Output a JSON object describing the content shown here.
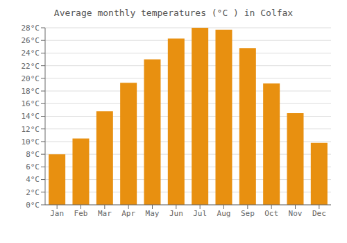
{
  "chart_data": {
    "type": "bar",
    "title": "Average monthly temperatures (°C ) in Colfax",
    "categories": [
      "Jan",
      "Feb",
      "Mar",
      "Apr",
      "May",
      "Jun",
      "Jul",
      "Aug",
      "Sep",
      "Oct",
      "Nov",
      "Dec"
    ],
    "values": [
      8.0,
      10.5,
      14.8,
      19.3,
      23.0,
      26.3,
      28.0,
      27.7,
      24.8,
      19.2,
      14.5,
      9.8
    ],
    "color": "#E89010",
    "ylim": [
      0,
      28
    ],
    "yticks": [
      {
        "value": 0,
        "label": "0°C"
      },
      {
        "value": 2,
        "label": "2°C"
      },
      {
        "value": 4,
        "label": "4°C"
      },
      {
        "value": 6,
        "label": "6°C"
      },
      {
        "value": 8,
        "label": "8°C"
      },
      {
        "value": 10,
        "label": "10°C"
      },
      {
        "value": 12,
        "label": "12°C"
      },
      {
        "value": 14,
        "label": "14°C"
      },
      {
        "value": 16,
        "label": "16°C"
      },
      {
        "value": 18,
        "label": "18°C"
      },
      {
        "value": 20,
        "label": "20°C"
      },
      {
        "value": 22,
        "label": "22°C"
      },
      {
        "value": 24,
        "label": "24°C"
      },
      {
        "value": 26,
        "label": "26°C"
      },
      {
        "value": 28,
        "label": "28°C"
      }
    ],
    "grid": true
  }
}
